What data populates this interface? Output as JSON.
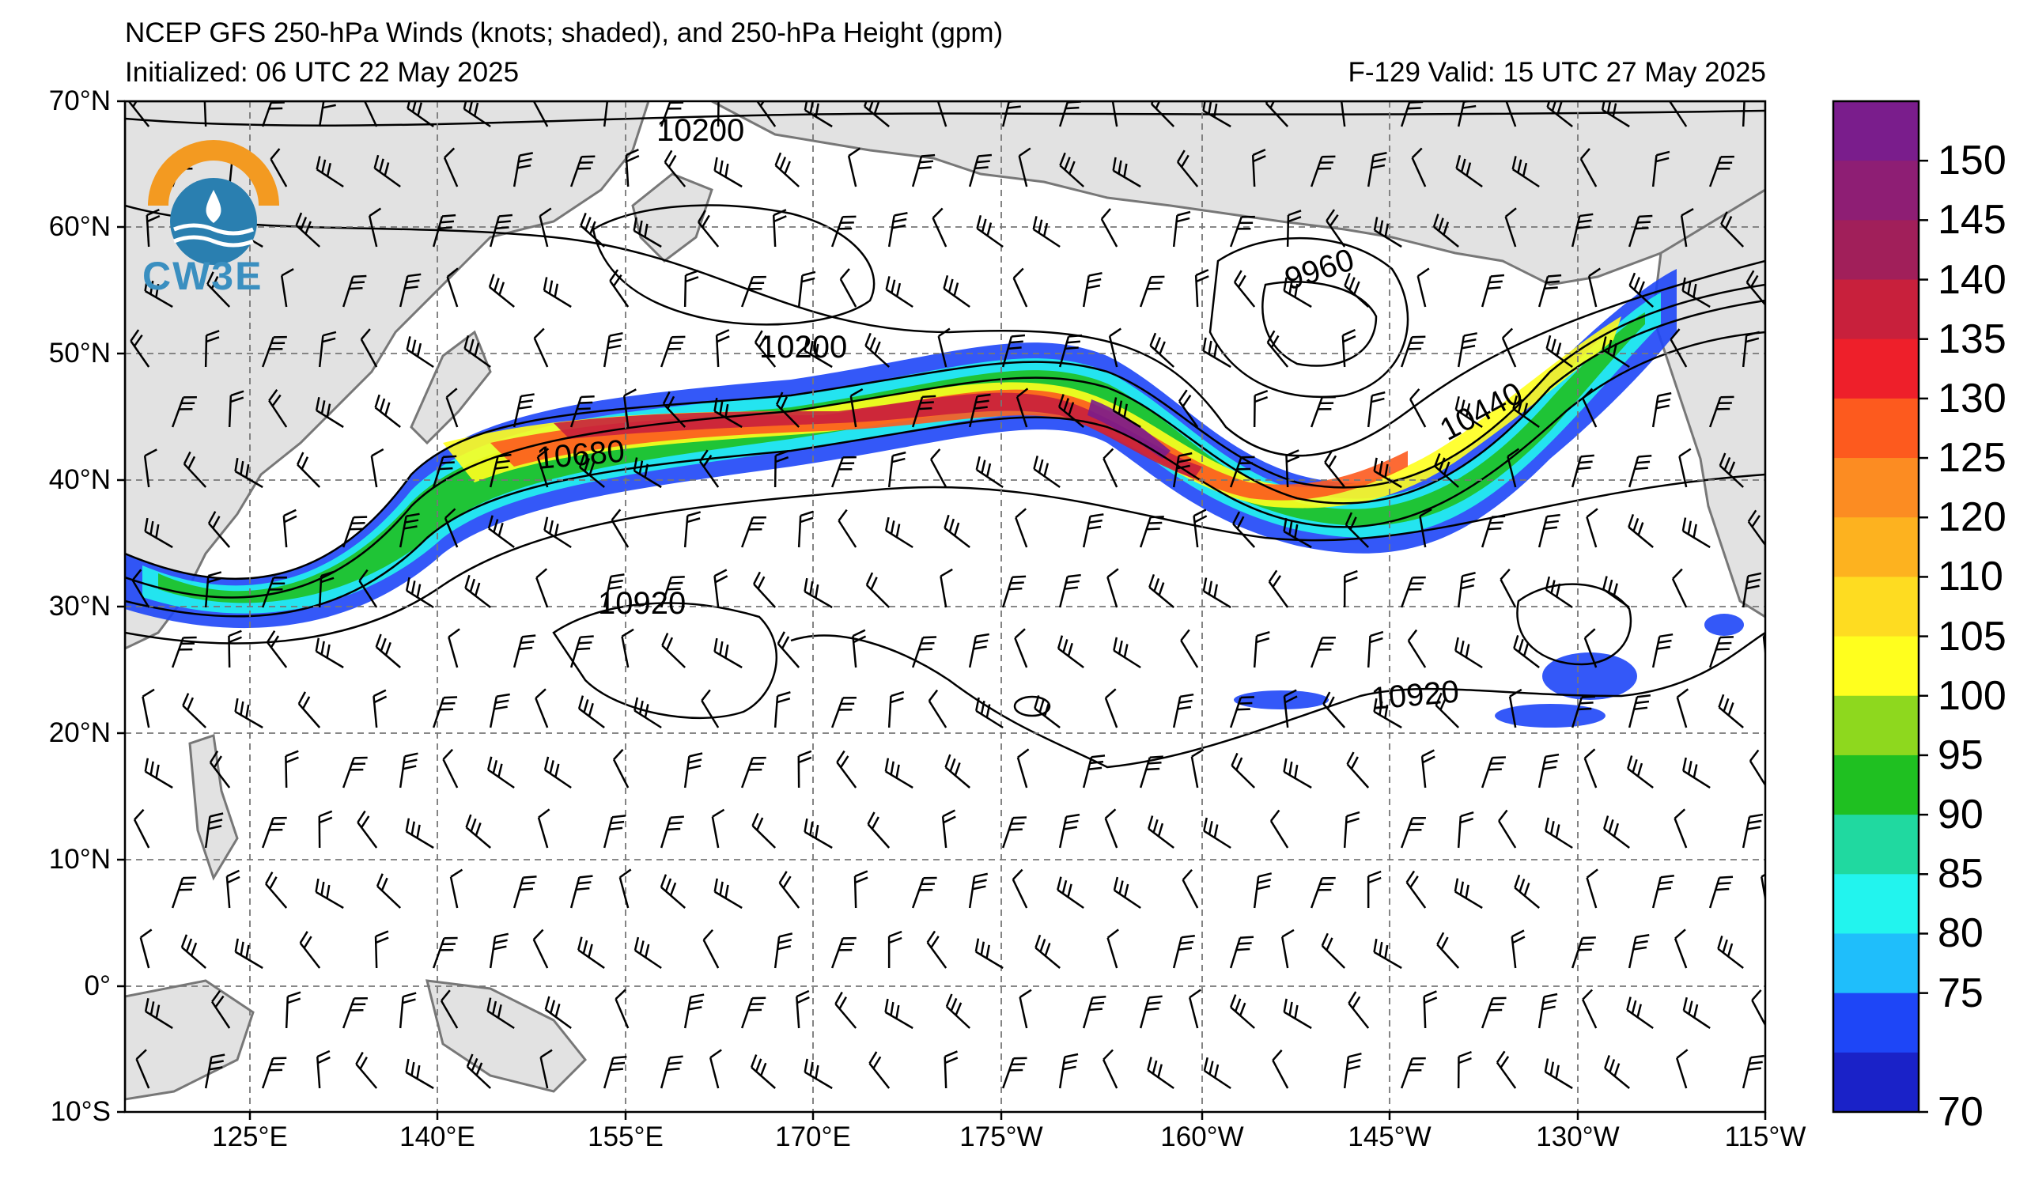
{
  "header": {
    "title": "NCEP GFS 250-hPa Winds (knots; shaded), and 250-hPa Height (gpm)",
    "initialized": "Initialized: 06 UTC 22 May 2025",
    "valid": "F-129  Valid: 15 UTC 27 May 2025"
  },
  "logo": {
    "text": "CW3E",
    "icon": "cw3e-logo-icon"
  },
  "map": {
    "lat_labels": [
      "70°N",
      "60°N",
      "50°N",
      "40°N",
      "30°N",
      "20°N",
      "10°N",
      "0°",
      "10°S"
    ],
    "lon_labels": [
      "125°E",
      "140°E",
      "155°E",
      "170°E",
      "175°W",
      "160°W",
      "145°W",
      "130°W",
      "115°W"
    ],
    "contour_labels": [
      {
        "text": "10200"
      },
      {
        "text": "10200"
      },
      {
        "text": "9960"
      },
      {
        "text": "10680"
      },
      {
        "text": "10440"
      },
      {
        "text": "10920"
      },
      {
        "text": "10920"
      }
    ]
  },
  "colorbar": {
    "labels": [
      "150",
      "145",
      "140",
      "135",
      "130",
      "125",
      "120",
      "110",
      "105",
      "100",
      "95",
      "90",
      "85",
      "80",
      "75",
      "70"
    ],
    "colors": [
      "#7a1d8c",
      "#8e1e74",
      "#a11f5a",
      "#c8203c",
      "#ee1f2a",
      "#fd5a1e",
      "#fc8c22",
      "#fdb21f",
      "#fedc21",
      "#ffff1e",
      "#8ed81e",
      "#1fc021",
      "#20d9a0",
      "#22f4ee",
      "#1fbefb",
      "#1e46f7",
      "#1a22c8"
    ]
  }
}
